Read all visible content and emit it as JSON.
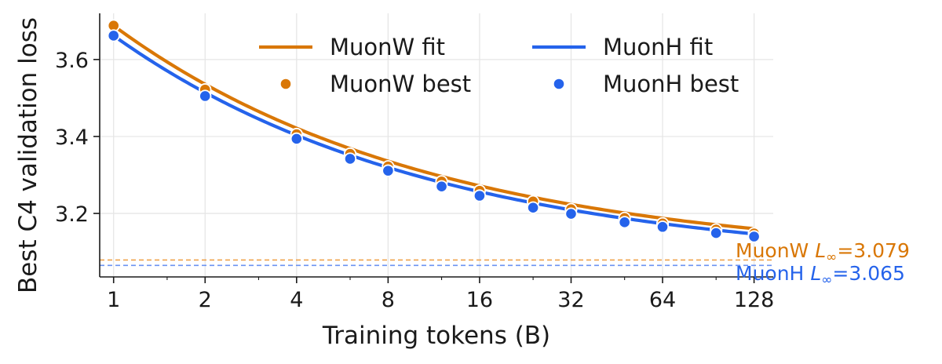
{
  "chart_data": {
    "type": "scatter",
    "xlabel": "Training tokens (B)",
    "ylabel": "Best C4 validation loss",
    "xscale": "log2",
    "xlim": [
      0.9,
      148
    ],
    "ylim": [
      3.035,
      3.72
    ],
    "xticks": [
      1,
      2,
      4,
      8,
      16,
      32,
      64,
      128
    ],
    "xtick_labels": [
      "1",
      "2",
      "4",
      "8",
      "16",
      "32",
      "64",
      "128"
    ],
    "yticks": [
      3.2,
      3.4,
      3.6
    ],
    "ytick_labels": [
      "3.2",
      "3.4",
      "3.6"
    ],
    "grid": true,
    "legend_position": "top-right",
    "series": [
      {
        "name": "MuonW best",
        "kind": "points",
        "color": "#d97706",
        "x": [
          1,
          2,
          4,
          6,
          8,
          12,
          16,
          24,
          32,
          48,
          64,
          96,
          128
        ],
        "y": [
          3.688,
          3.522,
          3.406,
          3.355,
          3.322,
          3.283,
          3.259,
          3.231,
          3.211,
          3.188,
          3.174,
          3.158,
          3.148
        ]
      },
      {
        "name": "MuonH best",
        "kind": "points",
        "color": "#2563eb",
        "x": [
          1,
          2,
          4,
          6,
          8,
          12,
          16,
          24,
          32,
          48,
          64,
          96,
          128
        ],
        "y": [
          3.662,
          3.505,
          3.394,
          3.342,
          3.311,
          3.27,
          3.246,
          3.215,
          3.199,
          3.177,
          3.165,
          3.149,
          3.14
        ]
      },
      {
        "name": "MuonW fit",
        "kind": "fit",
        "color": "#d97706",
        "L_inf": 3.079,
        "A": 0.609,
        "alpha": 0.415
      },
      {
        "name": "MuonH fit",
        "kind": "fit",
        "color": "#2563eb",
        "L_inf": 3.065,
        "A": 0.597,
        "alpha": 0.41
      }
    ],
    "asymptotes": [
      {
        "y": 3.079,
        "color": "#f0a24a",
        "label_color": "#d97706",
        "prefix": "MuonW ",
        "symbol": "L",
        "sub": "∞",
        "suffix": "=3.079"
      },
      {
        "y": 3.065,
        "color": "#6b93f2",
        "label_color": "#2563eb",
        "prefix": "MuonH ",
        "symbol": "L",
        "sub": "∞",
        "suffix": "=3.065"
      }
    ],
    "legend": [
      {
        "label": "MuonW fit",
        "marker": "line",
        "color": "#d97706"
      },
      {
        "label": "MuonH fit",
        "marker": "line",
        "color": "#2563eb"
      },
      {
        "label": "MuonW best",
        "marker": "dot",
        "color": "#d97706"
      },
      {
        "label": "MuonH best",
        "marker": "dot",
        "color": "#2563eb"
      }
    ]
  }
}
